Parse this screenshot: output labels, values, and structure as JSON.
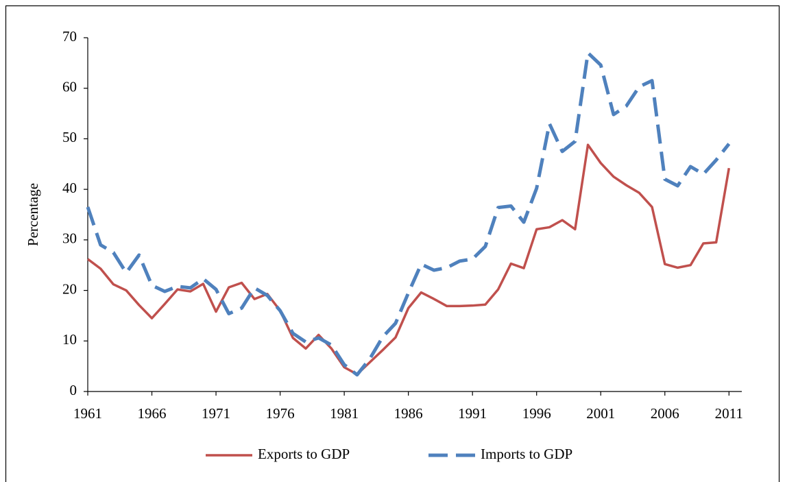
{
  "chart_data": {
    "type": "line",
    "y_label": "Percentage",
    "x": [
      1961,
      1962,
      1963,
      1964,
      1965,
      1966,
      1967,
      1968,
      1969,
      1970,
      1971,
      1972,
      1973,
      1974,
      1975,
      1976,
      1977,
      1978,
      1979,
      1980,
      1981,
      1982,
      1983,
      1984,
      1985,
      1986,
      1987,
      1988,
      1989,
      1990,
      1991,
      1992,
      1993,
      1994,
      1995,
      1996,
      1997,
      1998,
      1999,
      2000,
      2001,
      2002,
      2003,
      2004,
      2005,
      2006,
      2007,
      2008,
      2009,
      2010,
      2011
    ],
    "series": [
      {
        "name": "Exports to GDP",
        "color": "#c0504d",
        "dash": false,
        "values": [
          26.2,
          24.3,
          21.2,
          20,
          17.1,
          14.5,
          17.3,
          20.2,
          19.8,
          21.3,
          15.8,
          20.6,
          21.5,
          18.3,
          19.3,
          16,
          10.6,
          8.5,
          11.2,
          8.5,
          4.8,
          3.4,
          5.8,
          8.2,
          10.7,
          16.5,
          19.6,
          18.3,
          16.9,
          16.9,
          17,
          17.2,
          20.2,
          25.3,
          24.4,
          32.1,
          32.5,
          33.9,
          32.1,
          48.8,
          45.2,
          42.5,
          40.8,
          39.3,
          36.5,
          25.2,
          24.5,
          25,
          29.3,
          29.5,
          44.2
        ]
      },
      {
        "name": "Imports to GDP",
        "color": "#4f81bd",
        "dash": true,
        "values": [
          36.5,
          29,
          27.5,
          23.5,
          27,
          21,
          19.8,
          20.8,
          20.5,
          22.3,
          20.2,
          15.4,
          16.5,
          20.5,
          19,
          16,
          11.5,
          9.8,
          10.6,
          9.2,
          5.3,
          3.3,
          6.5,
          10.8,
          13.5,
          19.5,
          25.2,
          24,
          24.5,
          25.8,
          26.2,
          28.7,
          36.4,
          36.7,
          33.5,
          40.2,
          53,
          47.5,
          49.5,
          67,
          64.6,
          54.8,
          56.5,
          60.3,
          61.5,
          42,
          40.7,
          44.5,
          43,
          45.8,
          49
        ]
      }
    ],
    "xlim": [
      1961,
      2012
    ],
    "xticks": [
      1961,
      1966,
      1971,
      1976,
      1981,
      1986,
      1991,
      1996,
      2001,
      2006,
      2011
    ],
    "ylim": [
      0,
      70
    ],
    "yticks": [
      0,
      10,
      20,
      30,
      40,
      50,
      60,
      70
    ],
    "grid": false,
    "legend": "bottom"
  }
}
